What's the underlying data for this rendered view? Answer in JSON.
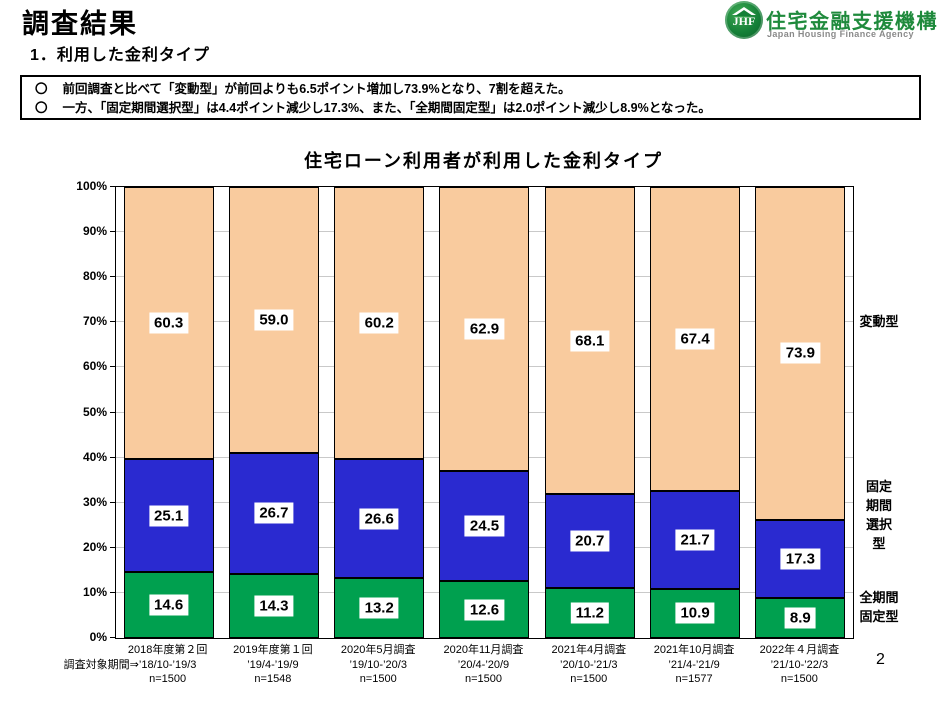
{
  "page": {
    "title": "調査結果",
    "subtitle": "1．利用した金利タイプ",
    "page_number": "2"
  },
  "logo": {
    "monogram": "JHF",
    "name_jp": "住宅金融支援機構",
    "name_en": "Japan Housing Finance Agency",
    "brand_green": "#1f8a3c"
  },
  "summary_box": {
    "bullets": [
      {
        "marker": "〇",
        "text": "前回調査と比べて「変動型」が前回よりも6.5ポイント増加し73.9%となり、7割を超えた。"
      },
      {
        "marker": "〇",
        "text": "一方、「固定期間選択型」は4.4ポイント減少し17.3%、また、「全期間固定型」は2.0ポイント減少し8.9%となった。"
      }
    ]
  },
  "chart_data": {
    "type": "bar",
    "stacked": true,
    "title": "住宅ローン利用者が利用した金利タイプ",
    "xlabel": "",
    "ylabel": "",
    "ylim": [
      0,
      100
    ],
    "grid": true,
    "legend_position": "right",
    "y_ticks": [
      "0%",
      "10%",
      "20%",
      "30%",
      "40%",
      "50%",
      "60%",
      "70%",
      "80%",
      "90%",
      "100%"
    ],
    "period_prefix": "調査対象期間⇒",
    "categories": [
      {
        "name": "2018年度第２回",
        "period": "’18/10-’19/3",
        "n": "n=1500"
      },
      {
        "name": "2019年度第１回",
        "period": "’19/4-’19/9",
        "n": "n=1548"
      },
      {
        "name": "2020年5月調査",
        "period": "’19/10-’20/3",
        "n": "n=1500"
      },
      {
        "name": "2020年11月調査",
        "period": "’20/4-’20/9",
        "n": "n=1500"
      },
      {
        "name": "2021年4月調査",
        "period": "’20/10-’21/3",
        "n": "n=1500"
      },
      {
        "name": "2021年10月調査",
        "period": "’21/4-’21/9",
        "n": "n=1577"
      },
      {
        "name": "2022年４月調査",
        "period": "’21/10-’22/3",
        "n": "n=1500"
      }
    ],
    "series": [
      {
        "name": "全期間固定型",
        "slug": "full-term-fixed",
        "legend_label": "全期間\n固定型",
        "color": "#00a04f",
        "values": [
          14.6,
          14.3,
          13.2,
          12.6,
          11.2,
          10.9,
          8.9
        ]
      },
      {
        "name": "固定期間選択型",
        "slug": "fixed-period-selection",
        "legend_label": "固定\n期間\n選択\n型",
        "color": "#2a2ad0",
        "values": [
          25.1,
          26.7,
          26.6,
          24.5,
          20.7,
          21.7,
          17.3
        ]
      },
      {
        "name": "変動型",
        "slug": "variable-rate",
        "legend_label": "変動型",
        "color": "#f9cb9e",
        "values": [
          60.3,
          59.0,
          60.2,
          62.9,
          68.1,
          67.4,
          73.9
        ]
      }
    ]
  }
}
